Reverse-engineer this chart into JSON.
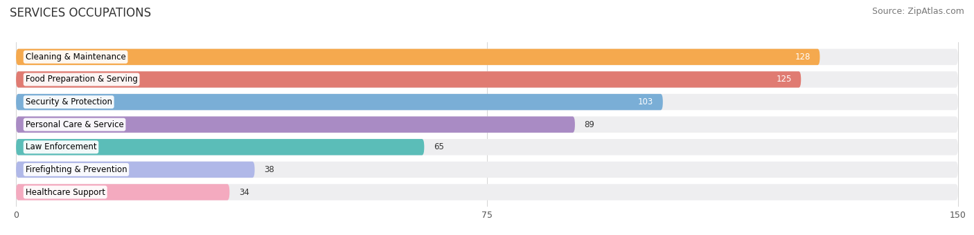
{
  "title": "SERVICES OCCUPATIONS",
  "source": "Source: ZipAtlas.com",
  "categories": [
    "Cleaning & Maintenance",
    "Food Preparation & Serving",
    "Security & Protection",
    "Personal Care & Service",
    "Law Enforcement",
    "Firefighting & Prevention",
    "Healthcare Support"
  ],
  "values": [
    128,
    125,
    103,
    89,
    65,
    38,
    34
  ],
  "bar_colors": [
    "#F5A94E",
    "#E07B72",
    "#7AAED6",
    "#A98BC4",
    "#5BBDB8",
    "#B0B8E8",
    "#F4AABF"
  ],
  "bar_bg_color": "#EEEEF0",
  "xlim": [
    0,
    150
  ],
  "xticks": [
    0,
    75,
    150
  ],
  "title_fontsize": 12,
  "source_fontsize": 9,
  "label_fontsize": 8.5,
  "value_fontsize": 8.5,
  "figsize": [
    14.06,
    3.4
  ],
  "dpi": 100,
  "bg_color": "#FFFFFF"
}
